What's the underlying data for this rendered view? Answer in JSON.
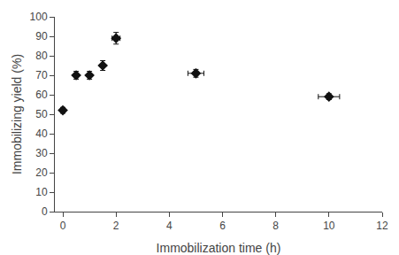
{
  "chart_data": {
    "type": "scatter",
    "x": [
      0,
      0.5,
      1.0,
      1.5,
      2.0,
      5.0,
      10.0
    ],
    "values": [
      52,
      70,
      70,
      75,
      89,
      71,
      59
    ],
    "xerr": [
      0.05,
      0.05,
      0.05,
      0.05,
      0.15,
      0.3,
      0.4
    ],
    "yerr": [
      1.5,
      2.0,
      2.0,
      2.5,
      3.0,
      2.0,
      1.5
    ],
    "xlabel": "Immobilization time (h)",
    "ylabel": "Immobilizing yield (%)",
    "xlim": [
      -0.3,
      12
    ],
    "ylim": [
      0,
      100
    ],
    "xticks": [
      0,
      2,
      4,
      6,
      8,
      10,
      12
    ],
    "yticks": [
      0,
      10,
      20,
      30,
      40,
      50,
      60,
      70,
      80,
      90,
      100
    ],
    "marker": "diamond",
    "color": "#111111",
    "grid": false
  }
}
